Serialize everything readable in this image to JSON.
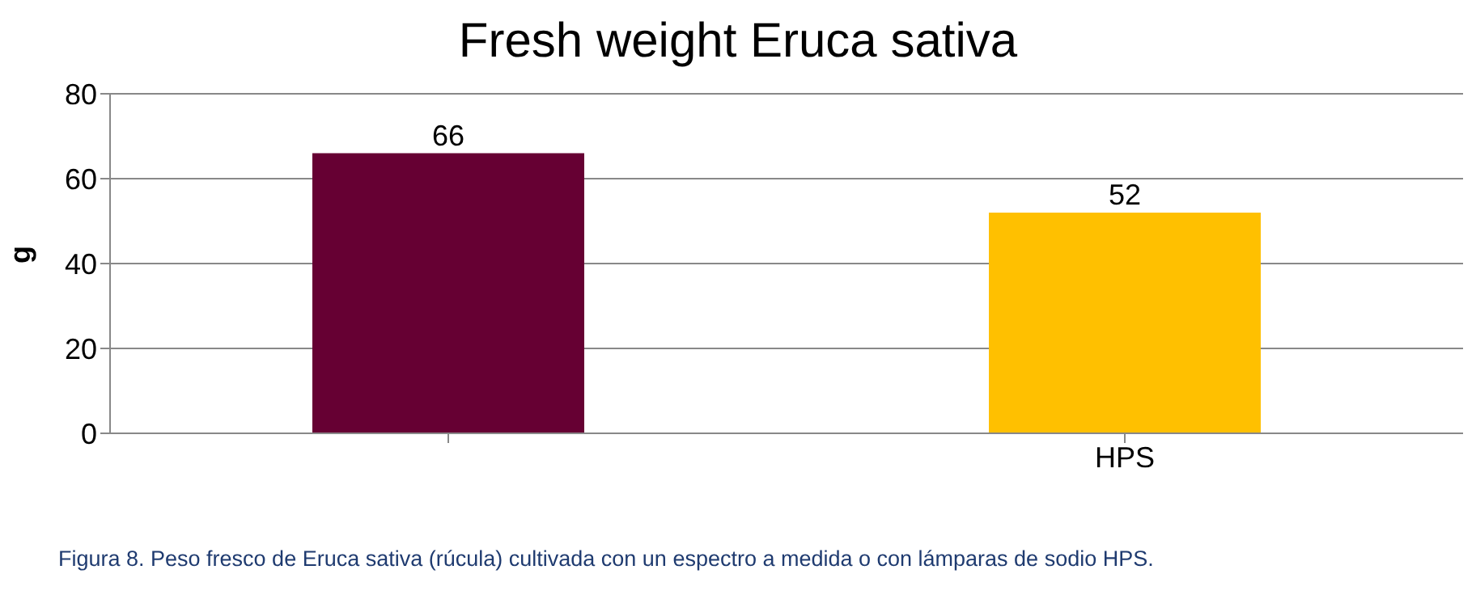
{
  "chart_data": {
    "type": "bar",
    "title": "Fresh weight Eruca sativa",
    "ylabel": "g",
    "categories": [
      null,
      "HPS"
    ],
    "values": [
      66,
      52
    ],
    "colors": [
      "#660033",
      "#ffc000"
    ],
    "ylim": [
      0,
      80
    ],
    "yticks": [
      0,
      20,
      40,
      60,
      80
    ],
    "grid": "y",
    "data_labels": true,
    "legend": false,
    "annotations": [
      "Figura 8. Peso fresco de Eruca sativa (rúcula) cultivada con un espectro a medida o con lámparas de sodio HPS."
    ]
  }
}
